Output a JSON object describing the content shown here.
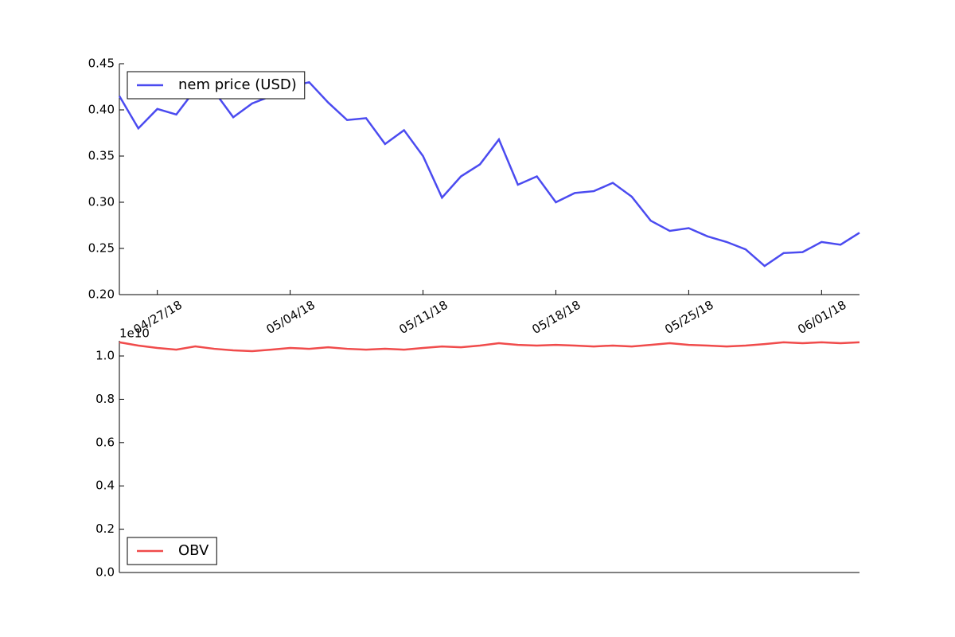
{
  "chart_data": [
    {
      "type": "line",
      "x": [
        "04/25/18",
        "04/26/18",
        "04/27/18",
        "04/28/18",
        "04/29/18",
        "04/30/18",
        "05/01/18",
        "05/02/18",
        "05/03/18",
        "05/04/18",
        "05/05/18",
        "05/06/18",
        "05/07/18",
        "05/08/18",
        "05/09/18",
        "05/10/18",
        "05/11/18",
        "05/12/18",
        "05/13/18",
        "05/14/18",
        "05/15/18",
        "05/16/18",
        "05/17/18",
        "05/18/18",
        "05/19/18",
        "05/20/18",
        "05/21/18",
        "05/22/18",
        "05/23/18",
        "05/24/18",
        "05/25/18",
        "05/26/18",
        "05/27/18",
        "05/28/18",
        "05/29/18",
        "05/30/18",
        "05/31/18",
        "06/01/18",
        "06/02/18",
        "06/03/18"
      ],
      "xticks": [
        "04/27/18",
        "05/04/18",
        "05/11/18",
        "05/18/18",
        "05/25/18",
        "06/01/18"
      ],
      "series": [
        {
          "name": "nem price (USD)",
          "color": "#4b4bf0",
          "values": [
            0.415,
            0.38,
            0.401,
            0.395,
            0.422,
            0.42,
            0.392,
            0.407,
            0.415,
            0.425,
            0.43,
            0.408,
            0.389,
            0.391,
            0.363,
            0.378,
            0.35,
            0.305,
            0.328,
            0.341,
            0.368,
            0.319,
            0.328,
            0.3,
            0.31,
            0.312,
            0.321,
            0.306,
            0.28,
            0.269,
            0.272,
            0.263,
            0.257,
            0.249,
            0.231,
            0.245,
            0.246,
            0.257,
            0.254,
            0.267
          ]
        }
      ],
      "ylim": [
        0.2,
        0.45
      ],
      "yticks": [
        {
          "value": 0.2,
          "label": "0.20"
        },
        0.25,
        {
          "value": 0.3,
          "label": "0.30"
        },
        0.35,
        {
          "value": 0.4,
          "label": "0.40"
        },
        0.45
      ],
      "legend": "upper left"
    },
    {
      "type": "line",
      "x": [
        "04/25/18",
        "04/26/18",
        "04/27/18",
        "04/28/18",
        "04/29/18",
        "04/30/18",
        "05/01/18",
        "05/02/18",
        "05/03/18",
        "05/04/18",
        "05/05/18",
        "05/06/18",
        "05/07/18",
        "05/08/18",
        "05/09/18",
        "05/10/18",
        "05/11/18",
        "05/12/18",
        "05/13/18",
        "05/14/18",
        "05/15/18",
        "05/16/18",
        "05/17/18",
        "05/18/18",
        "05/19/18",
        "05/20/18",
        "05/21/18",
        "05/22/18",
        "05/23/18",
        "05/24/18",
        "05/25/18",
        "05/26/18",
        "05/27/18",
        "05/28/18",
        "05/29/18",
        "05/30/18",
        "05/31/18",
        "06/01/18",
        "06/02/18",
        "06/03/18"
      ],
      "offset_label": "1e10",
      "series": [
        {
          "name": "OBV",
          "color": "#f04b4b",
          "values": [
            1.063,
            1.048,
            1.037,
            1.029,
            1.044,
            1.033,
            1.026,
            1.022,
            1.029,
            1.037,
            1.033,
            1.04,
            1.033,
            1.029,
            1.033,
            1.029,
            1.037,
            1.044,
            1.04,
            1.048,
            1.059,
            1.051,
            1.048,
            1.051,
            1.048,
            1.044,
            1.048,
            1.044,
            1.051,
            1.059,
            1.051,
            1.048,
            1.044,
            1.048,
            1.055,
            1.063,
            1.059,
            1.063,
            1.059,
            1.063
          ]
        }
      ],
      "ylim": [
        0,
        1.07
      ],
      "yticks": [
        {
          "value": 0,
          "label": "0.0"
        },
        0.2,
        0.4,
        0.6,
        0.8,
        {
          "value": 1,
          "label": "1.0"
        }
      ],
      "legend": "lower left"
    }
  ]
}
